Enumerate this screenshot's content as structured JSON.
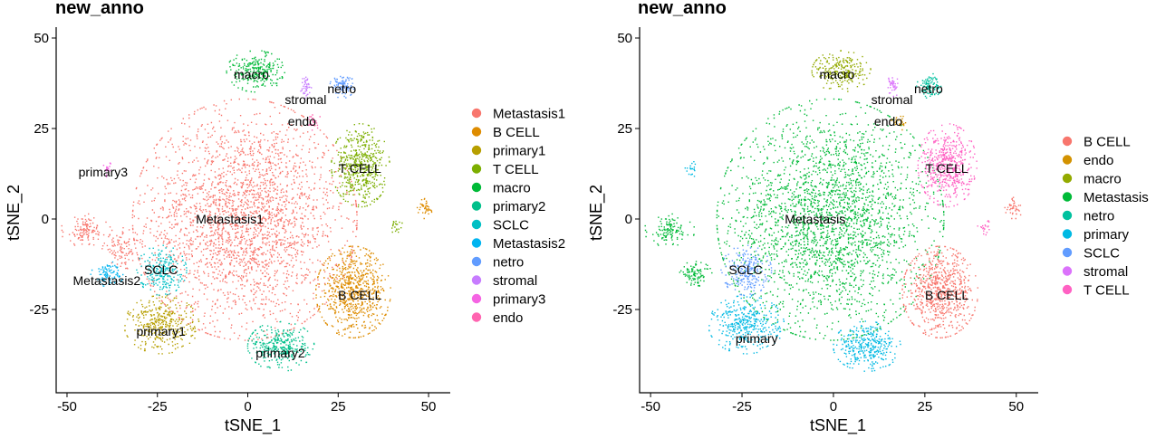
{
  "chart_data": [
    {
      "type": "scatter",
      "title": "new_anno",
      "xlabel": "tSNE_1",
      "ylabel": "tSNE_2",
      "xlim": [
        -53,
        56
      ],
      "ylim": [
        -48,
        53
      ],
      "xticks": [
        -50,
        -25,
        0,
        25,
        50
      ],
      "yticks": [
        -25,
        0,
        25,
        50
      ],
      "xtick_labels": [
        "-50",
        "-25",
        "0",
        "25",
        "50"
      ],
      "ytick_labels": [
        "-25",
        "0",
        "25",
        "50"
      ],
      "grid": false,
      "legend_position": "right",
      "legend": [
        {
          "name": "Metastasis1",
          "color": "#F8766D"
        },
        {
          "name": "B CELL",
          "color": "#DE8C00"
        },
        {
          "name": "primary1",
          "color": "#B79F00"
        },
        {
          "name": "T CELL",
          "color": "#7CAE00"
        },
        {
          "name": "macro",
          "color": "#00BA38"
        },
        {
          "name": "primary2",
          "color": "#00C08B"
        },
        {
          "name": "SCLC",
          "color": "#00BFC4"
        },
        {
          "name": "Metastasis2",
          "color": "#00B4F0"
        },
        {
          "name": "netro",
          "color": "#619CFF"
        },
        {
          "name": "stromal",
          "color": "#C77CFF"
        },
        {
          "name": "primary3",
          "color": "#F564E3"
        },
        {
          "name": "endo",
          "color": "#FF64B0"
        }
      ],
      "clusters": [
        {
          "label": "Metastasis1",
          "color": "#F8766D",
          "cx": -1,
          "cy": 0,
          "rx": 27,
          "ry": 29,
          "n": 2600
        },
        {
          "label": "Metastasis1",
          "color": "#F8766D",
          "cx": -45,
          "cy": -3,
          "rx": 6,
          "ry": 4,
          "n": 120
        },
        {
          "label": "Metastasis1",
          "color": "#F8766D",
          "cx": -35,
          "cy": -8,
          "rx": 5,
          "ry": 5,
          "n": 100
        },
        {
          "label": "B CELL",
          "color": "#DE8C00",
          "cx": 29,
          "cy": -20,
          "rx": 9,
          "ry": 11,
          "n": 750
        },
        {
          "label": "B CELL",
          "color": "#DE8C00",
          "cx": 49,
          "cy": 3,
          "rx": 2,
          "ry": 3,
          "n": 40
        },
        {
          "label": "primary1",
          "color": "#B79F00",
          "cx": -24,
          "cy": -29,
          "rx": 9,
          "ry": 7,
          "n": 380
        },
        {
          "label": "T CELL",
          "color": "#7CAE00",
          "cx": 31,
          "cy": 15,
          "rx": 7,
          "ry": 10,
          "n": 520
        },
        {
          "label": "T CELL",
          "color": "#7CAE00",
          "cx": 41,
          "cy": -2,
          "rx": 1.5,
          "ry": 2,
          "n": 20
        },
        {
          "label": "macro",
          "color": "#00BA38",
          "cx": 2,
          "cy": 41,
          "rx": 7,
          "ry": 5,
          "n": 260
        },
        {
          "label": "primary2",
          "color": "#00C08B",
          "cx": 9,
          "cy": -35,
          "rx": 8,
          "ry": 6,
          "n": 340
        },
        {
          "label": "SCLC",
          "color": "#00BFC4",
          "cx": -24,
          "cy": -14,
          "rx": 6,
          "ry": 6,
          "n": 230
        },
        {
          "label": "Metastasis2",
          "color": "#00B4F0",
          "cx": -39,
          "cy": -15,
          "rx": 4,
          "ry": 3,
          "n": 90
        },
        {
          "label": "netro",
          "color": "#619CFF",
          "cx": 26,
          "cy": 37,
          "rx": 3,
          "ry": 3,
          "n": 90
        },
        {
          "label": "stromal",
          "color": "#C77CFF",
          "cx": 16,
          "cy": 37,
          "rx": 1.5,
          "ry": 3,
          "n": 40
        },
        {
          "label": "primary3",
          "color": "#F564E3",
          "cx": -39,
          "cy": 14,
          "rx": 1,
          "ry": 2,
          "n": 20
        },
        {
          "label": "endo",
          "color": "#FF64B0",
          "cx": 18,
          "cy": 27,
          "rx": 2,
          "ry": 2,
          "n": 25
        }
      ],
      "annotations": [
        {
          "text": "macro",
          "x": 1,
          "y": 40
        },
        {
          "text": "netro",
          "x": 26,
          "y": 36
        },
        {
          "text": "stromal",
          "x": 16,
          "y": 33
        },
        {
          "text": "endo",
          "x": 15,
          "y": 27
        },
        {
          "text": "T CELL",
          "x": 31,
          "y": 14
        },
        {
          "text": "primary3",
          "x": -40,
          "y": 13
        },
        {
          "text": "Metastasis1",
          "x": -5,
          "y": 0
        },
        {
          "text": "Metastasis2",
          "x": -39,
          "y": -17
        },
        {
          "text": "SCLC",
          "x": -24,
          "y": -14
        },
        {
          "text": "B CELL",
          "x": 31,
          "y": -21
        },
        {
          "text": "primary1",
          "x": -24,
          "y": -31
        },
        {
          "text": "primary2",
          "x": 9,
          "y": -37
        }
      ]
    },
    {
      "type": "scatter",
      "title": "new_anno",
      "xlabel": "tSNE_1",
      "ylabel": "tSNE_2",
      "xlim": [
        -53,
        56
      ],
      "ylim": [
        -48,
        53
      ],
      "xticks": [
        -50,
        -25,
        0,
        25,
        50
      ],
      "yticks": [
        -25,
        0,
        25,
        50
      ],
      "xtick_labels": [
        "-50",
        "-25",
        "0",
        "25",
        "50"
      ],
      "ytick_labels": [
        "-25",
        "0",
        "25",
        "50"
      ],
      "grid": false,
      "legend_position": "right",
      "legend": [
        {
          "name": "B CELL",
          "color": "#F8766D"
        },
        {
          "name": "endo",
          "color": "#D39200"
        },
        {
          "name": "macro",
          "color": "#93AA00"
        },
        {
          "name": "Metastasis",
          "color": "#00BA38"
        },
        {
          "name": "netro",
          "color": "#00C19F"
        },
        {
          "name": "primary",
          "color": "#00B9E3"
        },
        {
          "name": "SCLC",
          "color": "#619CFF"
        },
        {
          "name": "stromal",
          "color": "#DB72FB"
        },
        {
          "name": "T CELL",
          "color": "#FF61C3"
        }
      ],
      "clusters": [
        {
          "label": "Metastasis",
          "color": "#00BA38",
          "cx": -1,
          "cy": 0,
          "rx": 27,
          "ry": 29,
          "n": 2600
        },
        {
          "label": "Metastasis",
          "color": "#00BA38",
          "cx": -45,
          "cy": -3,
          "rx": 6,
          "ry": 4,
          "n": 120
        },
        {
          "label": "Metastasis",
          "color": "#00BA38",
          "cx": -38,
          "cy": -15,
          "rx": 4,
          "ry": 3,
          "n": 90
        },
        {
          "label": "B CELL",
          "color": "#F8766D",
          "cx": 29,
          "cy": -20,
          "rx": 9,
          "ry": 11,
          "n": 750
        },
        {
          "label": "B CELL",
          "color": "#F8766D",
          "cx": 49,
          "cy": 3,
          "rx": 2,
          "ry": 3,
          "n": 40
        },
        {
          "label": "primary",
          "color": "#00B9E3",
          "cx": -24,
          "cy": -29,
          "rx": 9,
          "ry": 7,
          "n": 380
        },
        {
          "label": "primary",
          "color": "#00B9E3",
          "cx": 9,
          "cy": -35,
          "rx": 8,
          "ry": 6,
          "n": 340
        },
        {
          "label": "primary",
          "color": "#00B9E3",
          "cx": -39,
          "cy": 14,
          "rx": 1.5,
          "ry": 2,
          "n": 20
        },
        {
          "label": "T CELL",
          "color": "#FF61C3",
          "cx": 31,
          "cy": 15,
          "rx": 7,
          "ry": 10,
          "n": 520
        },
        {
          "label": "T CELL",
          "color": "#FF61C3",
          "cx": 41,
          "cy": -2,
          "rx": 1.5,
          "ry": 2,
          "n": 20
        },
        {
          "label": "macro",
          "color": "#93AA00",
          "cx": 2,
          "cy": 41,
          "rx": 7,
          "ry": 5,
          "n": 260
        },
        {
          "label": "SCLC",
          "color": "#619CFF",
          "cx": -24,
          "cy": -14,
          "rx": 6,
          "ry": 6,
          "n": 230
        },
        {
          "label": "netro",
          "color": "#00C19F",
          "cx": 26,
          "cy": 37,
          "rx": 3,
          "ry": 3,
          "n": 90
        },
        {
          "label": "stromal",
          "color": "#DB72FB",
          "cx": 16,
          "cy": 37,
          "rx": 1.5,
          "ry": 3,
          "n": 40
        },
        {
          "label": "endo",
          "color": "#D39200",
          "cx": 18,
          "cy": 27,
          "rx": 2,
          "ry": 2,
          "n": 25
        }
      ],
      "annotations": [
        {
          "text": "macro",
          "x": 1,
          "y": 40
        },
        {
          "text": "netro",
          "x": 26,
          "y": 36
        },
        {
          "text": "stromal",
          "x": 16,
          "y": 33
        },
        {
          "text": "endo",
          "x": 15,
          "y": 27
        },
        {
          "text": "T CELL",
          "x": 31,
          "y": 14
        },
        {
          "text": "Metastasis",
          "x": -5,
          "y": 0
        },
        {
          "text": "SCLC",
          "x": -24,
          "y": -14
        },
        {
          "text": "B CELL",
          "x": 31,
          "y": -21
        },
        {
          "text": "primary",
          "x": -21,
          "y": -33
        }
      ]
    }
  ]
}
